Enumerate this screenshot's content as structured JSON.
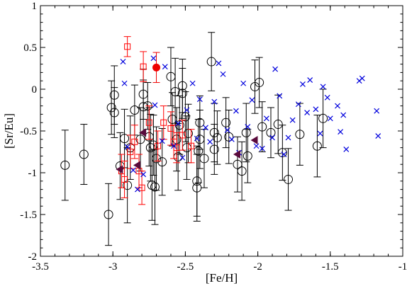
{
  "chart_data": {
    "type": "scatter",
    "xlabel": "[Fe/H]",
    "ylabel": "[Sr/Eu]",
    "xlim": [
      -3.5,
      -1.0
    ],
    "ylim": [
      -2.0,
      1.0
    ],
    "x_ticks": [
      -3.5,
      -3.0,
      -2.5,
      -2.0,
      -1.5,
      -1.0
    ],
    "x_tick_labels": [
      "-3.5",
      "-3",
      "-2.5",
      "-2",
      "-1.5",
      "-1"
    ],
    "y_ticks": [
      -2.0,
      -1.5,
      -1.0,
      -0.5,
      0.0,
      0.5,
      1.0
    ],
    "y_tick_labels": [
      "-2",
      "-1.5",
      "-1",
      "-0.5",
      "0",
      "0.5",
      "1"
    ],
    "grid": false,
    "series": [
      {
        "marker": "open-circle",
        "color": "#000000",
        "points": [
          {
            "x": -3.33,
            "y": -0.91,
            "err": 0.42
          },
          {
            "x": -3.2,
            "y": -0.78,
            "err": 0.36
          },
          {
            "x": -3.03,
            "y": -1.5,
            "err": 0.37
          },
          {
            "x": -3.01,
            "y": -0.22,
            "err": 0.32
          },
          {
            "x": -2.99,
            "y": -0.07,
            "err": 0.35
          },
          {
            "x": -2.99,
            "y": -0.28,
            "err": 0.3
          },
          {
            "x": -2.95,
            "y": -0.92,
            "err": 0.4
          },
          {
            "x": -2.92,
            "y": -0.59,
            "err": 0.35
          },
          {
            "x": -2.9,
            "y": -1.15,
            "err": 0.45
          },
          {
            "x": -2.88,
            "y": -0.7,
            "err": 0.38
          },
          {
            "x": -2.85,
            "y": -0.25,
            "err": 0.3
          },
          {
            "x": -2.81,
            "y": -0.6,
            "err": 0.38
          },
          {
            "x": -2.79,
            "y": -0.21,
            "err": 0.32
          },
          {
            "x": -2.79,
            "y": -0.06,
            "err": 0.3
          },
          {
            "x": -2.76,
            "y": -0.2,
            "err": 0.28
          },
          {
            "x": -2.75,
            "y": -0.57,
            "err": 0.35
          },
          {
            "x": -2.74,
            "y": -0.7,
            "err": 0.4
          },
          {
            "x": -2.73,
            "y": -1.15,
            "err": 0.42
          },
          {
            "x": -2.72,
            "y": -0.67,
            "err": 0.36
          },
          {
            "x": -2.71,
            "y": -1.17,
            "err": 0.45
          },
          {
            "x": -2.7,
            "y": -0.83,
            "err": 0.38
          },
          {
            "x": -2.66,
            "y": -0.87,
            "err": 0.4
          },
          {
            "x": -2.6,
            "y": 0.15,
            "err": 0.35
          },
          {
            "x": -2.59,
            "y": -0.36,
            "err": 0.32
          },
          {
            "x": -2.57,
            "y": -0.03,
            "err": 0.4
          },
          {
            "x": -2.56,
            "y": -0.6,
            "err": 0.38
          },
          {
            "x": -2.55,
            "y": -0.81,
            "err": 0.4
          },
          {
            "x": -2.54,
            "y": -0.43,
            "err": 0.35
          },
          {
            "x": -2.52,
            "y": -0.05,
            "err": 0.3
          },
          {
            "x": -2.52,
            "y": 0.04,
            "err": 0.32
          },
          {
            "x": -2.5,
            "y": -0.33,
            "err": 0.3
          },
          {
            "x": -2.49,
            "y": -0.7,
            "err": 0.38
          },
          {
            "x": -2.48,
            "y": -0.53,
            "err": 0.35
          },
          {
            "x": -2.42,
            "y": -1.1,
            "err": 0.42
          },
          {
            "x": -2.42,
            "y": -1.18,
            "err": 0.4
          },
          {
            "x": -2.41,
            "y": -0.74,
            "err": 0.38
          },
          {
            "x": -2.4,
            "y": -0.4,
            "err": 0.32
          },
          {
            "x": -2.4,
            "y": -0.6,
            "err": 0.35
          },
          {
            "x": -2.37,
            "y": -0.83,
            "err": 0.35
          },
          {
            "x": -2.32,
            "y": 0.33,
            "err": 0.35
          },
          {
            "x": -2.3,
            "y": -0.52,
            "err": 0.35
          },
          {
            "x": -2.3,
            "y": -0.72,
            "err": 0.3
          },
          {
            "x": -2.28,
            "y": -0.58,
            "err": 0.32
          },
          {
            "x": -2.22,
            "y": -0.4,
            "err": 0.3
          },
          {
            "x": -2.2,
            "y": -0.57,
            "err": 0.32
          },
          {
            "x": -2.14,
            "y": -0.9,
            "err": 0.33
          },
          {
            "x": -2.11,
            "y": -0.98,
            "err": 0.35
          },
          {
            "x": -2.08,
            "y": -0.52,
            "err": 0.35
          },
          {
            "x": -2.07,
            "y": -0.8,
            "err": 0.32
          },
          {
            "x": -2.02,
            "y": 0.03,
            "err": 0.32
          },
          {
            "x": -1.99,
            "y": 0.08,
            "err": 0.3
          },
          {
            "x": -1.97,
            "y": -0.45,
            "err": 0.3
          },
          {
            "x": -1.91,
            "y": -0.52,
            "err": 0.3
          },
          {
            "x": -1.86,
            "y": -0.42,
            "err": 0.35
          },
          {
            "x": -1.83,
            "y": -0.76,
            "err": 0.33
          },
          {
            "x": -1.79,
            "y": -1.08,
            "err": 0.37
          },
          {
            "x": -1.71,
            "y": -0.54,
            "err": 0.37
          },
          {
            "x": -1.59,
            "y": -0.68,
            "err": 0.37
          },
          {
            "x": -1.55,
            "y": -0.35,
            "err": 0.35
          }
        ]
      },
      {
        "marker": "open-square",
        "color": "#ff0000",
        "points": [
          {
            "x": -2.94,
            "y": -0.98,
            "err": 0.2
          },
          {
            "x": -2.92,
            "y": -1.08,
            "err": 0.22
          },
          {
            "x": -2.9,
            "y": 0.51,
            "err": 0.12
          },
          {
            "x": -2.88,
            "y": -0.75,
            "err": 0.2
          },
          {
            "x": -2.85,
            "y": -0.63,
            "err": 0.2
          },
          {
            "x": -2.82,
            "y": -0.98,
            "err": 0.2
          },
          {
            "x": -2.8,
            "y": -1.18,
            "err": 0.2
          },
          {
            "x": -2.79,
            "y": 0.27,
            "err": 0.18
          },
          {
            "x": -2.75,
            "y": -0.4,
            "err": 0.2
          },
          {
            "x": -2.69,
            "y": -0.68,
            "err": 0.18
          },
          {
            "x": -2.65,
            "y": -0.4,
            "err": 0.2
          },
          {
            "x": -2.6,
            "y": -0.47,
            "err": 0.2
          },
          {
            "x": -2.58,
            "y": -0.63,
            "err": 0.2
          },
          {
            "x": -2.56,
            "y": -0.7,
            "err": 0.18
          },
          {
            "x": -2.52,
            "y": -0.55,
            "err": 0.18
          },
          {
            "x": -2.46,
            "y": -0.68,
            "err": 0.2
          }
        ]
      },
      {
        "marker": "cross",
        "color": "#0000dd",
        "points": [
          {
            "x": -2.93,
            "y": 0.33
          },
          {
            "x": -2.92,
            "y": 0.07
          },
          {
            "x": -2.9,
            "y": -0.69
          },
          {
            "x": -2.86,
            "y": -0.97
          },
          {
            "x": -2.83,
            "y": -1.2
          },
          {
            "x": -2.79,
            "y": -1.02
          },
          {
            "x": -2.72,
            "y": 0.37
          },
          {
            "x": -2.71,
            "y": -0.19
          },
          {
            "x": -2.66,
            "y": -0.62
          },
          {
            "x": -2.64,
            "y": 0.27
          },
          {
            "x": -2.58,
            "y": -0.68
          },
          {
            "x": -2.55,
            "y": -0.41
          },
          {
            "x": -2.52,
            "y": -0.82
          },
          {
            "x": -2.49,
            "y": -0.25
          },
          {
            "x": -2.45,
            "y": 0.07
          },
          {
            "x": -2.42,
            "y": -0.59
          },
          {
            "x": -2.4,
            "y": -0.12
          },
          {
            "x": -2.36,
            "y": -0.46
          },
          {
            "x": -2.33,
            "y": -0.63
          },
          {
            "x": -2.3,
            "y": -0.15
          },
          {
            "x": -2.27,
            "y": 0.31
          },
          {
            "x": -2.24,
            "y": 0.18
          },
          {
            "x": -2.21,
            "y": -0.49
          },
          {
            "x": -2.18,
            "y": -0.6
          },
          {
            "x": -2.15,
            "y": -0.26
          },
          {
            "x": -2.13,
            "y": -0.76
          },
          {
            "x": -2.1,
            "y": 0.07
          },
          {
            "x": -2.07,
            "y": -0.45
          },
          {
            "x": -2.04,
            "y": -0.13
          },
          {
            "x": -2.01,
            "y": -0.68
          },
          {
            "x": -1.97,
            "y": -0.71
          },
          {
            "x": -1.94,
            "y": -0.35
          },
          {
            "x": -1.9,
            "y": -0.58
          },
          {
            "x": -1.88,
            "y": 0.24
          },
          {
            "x": -1.85,
            "y": -0.08
          },
          {
            "x": -1.82,
            "y": -0.78
          },
          {
            "x": -1.79,
            "y": -0.58
          },
          {
            "x": -1.76,
            "y": -0.37
          },
          {
            "x": -1.72,
            "y": -0.18
          },
          {
            "x": -1.69,
            "y": 0.06
          },
          {
            "x": -1.66,
            "y": -0.28
          },
          {
            "x": -1.64,
            "y": 0.11
          },
          {
            "x": -1.6,
            "y": -0.24
          },
          {
            "x": -1.57,
            "y": -0.53
          },
          {
            "x": -1.55,
            "y": 0.03
          },
          {
            "x": -1.52,
            "y": -0.1
          },
          {
            "x": -1.5,
            "y": -0.35
          },
          {
            "x": -1.45,
            "y": -0.2
          },
          {
            "x": -1.43,
            "y": -0.51
          },
          {
            "x": -1.41,
            "y": -0.31
          },
          {
            "x": -1.39,
            "y": -0.72
          },
          {
            "x": -1.3,
            "y": 0.1
          },
          {
            "x": -1.28,
            "y": 0.13
          },
          {
            "x": -1.18,
            "y": -0.26
          },
          {
            "x": -1.17,
            "y": -0.56
          }
        ]
      },
      {
        "marker": "left-triangle",
        "color": "#5a0a3c",
        "points": [
          {
            "x": -2.95,
            "y": -0.96
          },
          {
            "x": -2.83,
            "y": -0.91
          },
          {
            "x": -2.79,
            "y": -0.52
          },
          {
            "x": -2.14,
            "y": -0.78
          },
          {
            "x": -2.02,
            "y": -0.61
          }
        ]
      },
      {
        "marker": "filled-circle",
        "color": "#ee0000",
        "points": [
          {
            "x": -2.7,
            "y": 0.26,
            "err": 0.18
          }
        ]
      }
    ]
  }
}
